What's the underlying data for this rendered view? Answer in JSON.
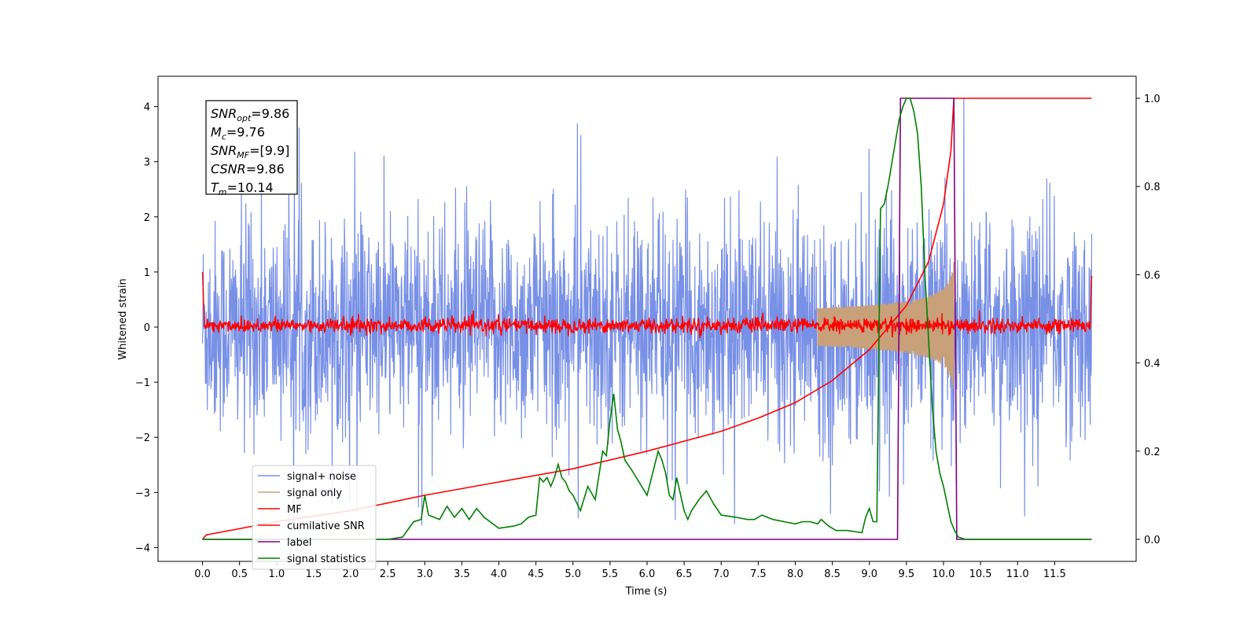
{
  "chart_data": {
    "type": "line",
    "xlabel": "Time (s)",
    "ylabel": "Whitened strain",
    "xlim": [
      -0.6,
      12.6
    ],
    "ylim": [
      -4.25,
      4.55
    ],
    "ylim_right": [
      -0.05,
      1.05
    ],
    "x_ticks": [
      0.0,
      0.5,
      1.0,
      1.5,
      2.0,
      2.5,
      3.0,
      3.5,
      4.0,
      4.5,
      5.0,
      5.5,
      6.0,
      6.5,
      7.0,
      7.5,
      8.0,
      8.5,
      9.0,
      9.5,
      10.0,
      10.5,
      11.0,
      11.5
    ],
    "x_tick_labels": [
      "0.0",
      "0.5",
      "1.0",
      "1.5",
      "2.0",
      "2.5",
      "3.0",
      "3.5",
      "4.0",
      "4.5",
      "5.0",
      "5.5",
      "6.0",
      "6.5",
      "7.0",
      "7.5",
      "8.0",
      "8.5",
      "9.0",
      "9.5",
      "10.0",
      "10.5",
      "11.0",
      "11.5"
    ],
    "y_ticks": [
      4,
      3,
      2,
      1,
      0,
      -1,
      -2,
      -3,
      -4
    ],
    "y_tick_labels": [
      "4",
      "3",
      "2",
      "1",
      "0",
      "−1",
      "−2",
      "−3",
      "−4"
    ],
    "y_right_ticks": [
      1.0,
      0.8,
      0.6,
      0.4,
      0.2,
      0.0
    ],
    "y_right_tick_labels": [
      "1.0",
      "0.8",
      "0.6",
      "0.4",
      "0.2",
      "0.0"
    ],
    "info_box": [
      {
        "main": "SNR",
        "sub": "opt",
        "value": "=9.86"
      },
      {
        "main": "M",
        "sub": "c",
        "value": "=9.76"
      },
      {
        "main": "SNR",
        "sub": "MF",
        "value": "=[9.9]"
      },
      {
        "main": "CSNR",
        "sub": "",
        "value": "=9.86"
      },
      {
        "main": "T",
        "sub": "m",
        "value": "=10.14"
      }
    ],
    "legend_position": "lower-left",
    "series": [
      {
        "name": "signal+ noise",
        "color": "#7890e6",
        "axis": "left",
        "style": "noise",
        "x_start": 0.0,
        "x_end": 12.0,
        "noise_range": [
          -3.6,
          4.17
        ],
        "typical_amplitude": 2.2
      },
      {
        "name": "signal only",
        "color": "#c8a07a",
        "axis": "left",
        "style": "chirp",
        "x_start": 8.3,
        "x_end": 10.14,
        "peak_amplitude": 1.2
      },
      {
        "name": "MF",
        "color": "#ff0000",
        "axis": "left",
        "style": "noise",
        "x_start": 0.0,
        "x_end": 12.0,
        "noise_range": [
          -0.2,
          0.3
        ],
        "edge_value": 1.0
      },
      {
        "name": "cumilative SNR",
        "color": "#ff0000",
        "axis": "right",
        "x": [
          0.0,
          0.05,
          1.0,
          2.0,
          3.0,
          4.0,
          5.0,
          6.0,
          7.0,
          7.5,
          8.0,
          8.5,
          9.0,
          9.5,
          9.8,
          10.0,
          10.1,
          10.14,
          12.0
        ],
        "y": [
          0.0,
          0.01,
          0.04,
          0.065,
          0.1,
          0.13,
          0.16,
          0.2,
          0.245,
          0.275,
          0.31,
          0.36,
          0.43,
          0.53,
          0.63,
          0.76,
          0.88,
          1.0,
          1.0
        ]
      },
      {
        "name": "label",
        "color": "#800080",
        "axis": "right",
        "x": [
          0.0,
          9.38,
          9.42,
          10.14,
          10.18,
          12.0
        ],
        "y": [
          0.0,
          0.0,
          1.0,
          1.0,
          0.0,
          0.0
        ]
      },
      {
        "name": "signal statistics",
        "color": "#008000",
        "axis": "right",
        "x": [
          0.0,
          0.5,
          1.0,
          1.5,
          2.0,
          2.5,
          2.7,
          2.85,
          2.95,
          3.0,
          3.05,
          3.2,
          3.3,
          3.4,
          3.5,
          3.6,
          3.7,
          3.8,
          4.0,
          4.2,
          4.3,
          4.4,
          4.5,
          4.55,
          4.6,
          4.65,
          4.7,
          4.75,
          4.8,
          4.85,
          4.9,
          4.95,
          5.0,
          5.1,
          5.2,
          5.3,
          5.4,
          5.45,
          5.5,
          5.55,
          5.6,
          5.65,
          5.7,
          5.8,
          6.0,
          6.15,
          6.2,
          6.25,
          6.3,
          6.35,
          6.4,
          6.5,
          6.55,
          6.6,
          6.7,
          6.8,
          6.9,
          7.0,
          7.2,
          7.35,
          7.45,
          7.55,
          7.7,
          7.85,
          8.0,
          8.1,
          8.2,
          8.3,
          8.35,
          8.45,
          8.55,
          8.7,
          8.9,
          8.95,
          9.0,
          9.05,
          9.1,
          9.15,
          9.2,
          9.25,
          9.3,
          9.35,
          9.4,
          9.45,
          9.5,
          9.55,
          9.6,
          9.65,
          9.7,
          9.75,
          9.8,
          9.85,
          9.9,
          9.95,
          10.0,
          10.05,
          10.1,
          10.15,
          10.2,
          10.3,
          11.0,
          12.0
        ],
        "y": [
          0.0,
          0.0,
          0.0,
          0.0,
          0.0,
          0.0,
          0.005,
          0.04,
          0.045,
          0.1,
          0.055,
          0.045,
          0.075,
          0.05,
          0.07,
          0.045,
          0.07,
          0.05,
          0.025,
          0.03,
          0.035,
          0.05,
          0.055,
          0.14,
          0.13,
          0.14,
          0.12,
          0.14,
          0.17,
          0.14,
          0.13,
          0.11,
          0.1,
          0.065,
          0.12,
          0.09,
          0.2,
          0.19,
          0.27,
          0.33,
          0.25,
          0.22,
          0.18,
          0.155,
          0.1,
          0.2,
          0.18,
          0.15,
          0.1,
          0.09,
          0.14,
          0.065,
          0.045,
          0.065,
          0.09,
          0.11,
          0.08,
          0.055,
          0.05,
          0.045,
          0.045,
          0.055,
          0.045,
          0.04,
          0.035,
          0.04,
          0.04,
          0.035,
          0.045,
          0.03,
          0.02,
          0.02,
          0.015,
          0.05,
          0.07,
          0.04,
          0.04,
          0.75,
          0.76,
          0.8,
          0.85,
          0.9,
          0.95,
          0.98,
          1.0,
          1.0,
          0.97,
          0.92,
          0.8,
          0.6,
          0.45,
          0.3,
          0.2,
          0.15,
          0.12,
          0.08,
          0.04,
          0.02,
          0.005,
          0.0,
          0.0,
          0.0
        ]
      }
    ]
  }
}
